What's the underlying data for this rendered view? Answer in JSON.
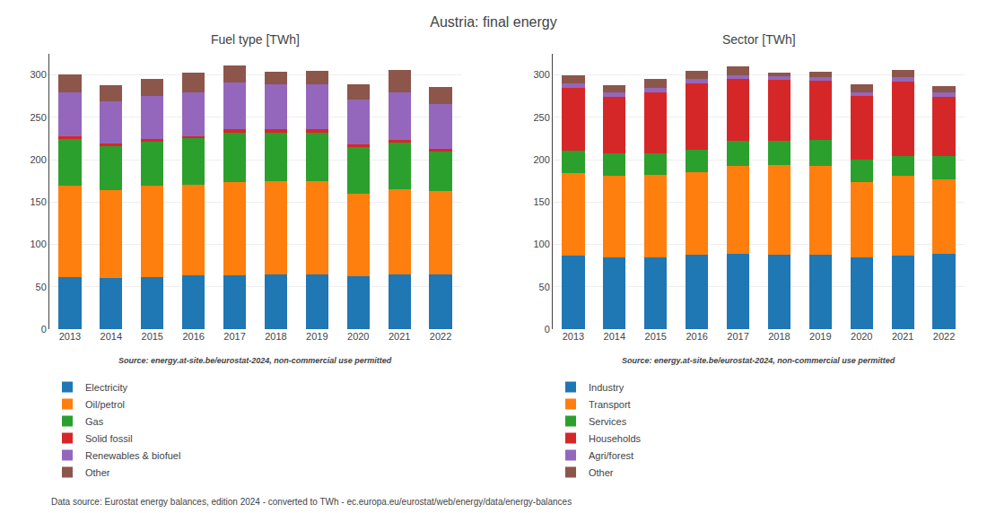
{
  "chart_data": [
    {
      "type": "bar",
      "title": "Austria: final energy",
      "subtitle": "Fuel type [TWh]",
      "categories": [
        2013,
        2014,
        2015,
        2016,
        2017,
        2018,
        2019,
        2020,
        2021,
        2022
      ],
      "series": [
        {
          "name": "Electricity",
          "color": "#1f77b4",
          "values": [
            61,
            60,
            61,
            63,
            64,
            65,
            65,
            62,
            65,
            65
          ]
        },
        {
          "name": "Oil/petrol",
          "color": "#ff7f0e",
          "values": [
            108,
            104,
            108,
            107,
            110,
            110,
            110,
            98,
            100,
            98
          ]
        },
        {
          "name": "Gas",
          "color": "#2ca02c",
          "values": [
            55,
            52,
            52,
            55,
            58,
            57,
            57,
            55,
            55,
            47
          ]
        },
        {
          "name": "Solid fossil",
          "color": "#d62728",
          "values": [
            4,
            3,
            3,
            3,
            4,
            4,
            4,
            3,
            3,
            3
          ]
        },
        {
          "name": "Renewables & biofuel",
          "color": "#9467bd",
          "values": [
            52,
            50,
            51,
            52,
            55,
            53,
            53,
            53,
            57,
            53
          ]
        },
        {
          "name": "Other",
          "color": "#8c564b",
          "values": [
            21,
            19,
            20,
            23,
            20,
            15,
            16,
            18,
            26,
            20
          ]
        }
      ],
      "stacked": true,
      "ylim": [
        0,
        325
      ],
      "yticks": [
        0,
        50,
        100,
        150,
        200,
        250,
        300
      ],
      "grid": true,
      "legend": "bottom",
      "annotations": [
        "Source: energy.at-site.be/eurostat-2024, non-commercial use permitted",
        "Data source: Eurostat energy balances, edition 2024 - converted to TWh - ec.europa.eu/eurostat/web/energy/data/energy-balances"
      ]
    },
    {
      "type": "bar",
      "subtitle": "Sector [TWh]",
      "categories": [
        2013,
        2014,
        2015,
        2016,
        2017,
        2018,
        2019,
        2020,
        2021,
        2022
      ],
      "series": [
        {
          "name": "Industry",
          "color": "#1f77b4",
          "values": [
            87,
            85,
            85,
            88,
            89,
            88,
            88,
            85,
            87,
            89
          ]
        },
        {
          "name": "Transport",
          "color": "#ff7f0e",
          "values": [
            97,
            96,
            97,
            97,
            104,
            106,
            105,
            89,
            94,
            88
          ]
        },
        {
          "name": "Services",
          "color": "#2ca02c",
          "values": [
            27,
            26,
            26,
            27,
            29,
            28,
            30,
            26,
            23,
            27
          ]
        },
        {
          "name": "Households",
          "color": "#d62728",
          "values": [
            74,
            67,
            72,
            78,
            73,
            72,
            70,
            75,
            88,
            70
          ]
        },
        {
          "name": "Agri/forest",
          "color": "#9467bd",
          "values": [
            5,
            5,
            5,
            5,
            5,
            5,
            5,
            5,
            5,
            5
          ]
        },
        {
          "name": "Other",
          "color": "#8c564b",
          "values": [
            10,
            9,
            10,
            10,
            10,
            4,
            6,
            9,
            9,
            8
          ]
        }
      ],
      "stacked": true,
      "ylim": [
        0,
        325
      ],
      "yticks": [
        0,
        50,
        100,
        150,
        200,
        250,
        300
      ],
      "grid": true,
      "legend": "bottom",
      "annotations": [
        "Source: energy.at-site.be/eurostat-2024, non-commercial use permitted"
      ]
    }
  ]
}
